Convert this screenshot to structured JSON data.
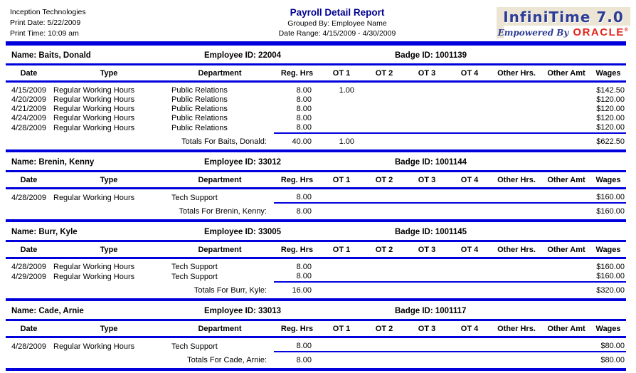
{
  "report": {
    "company": "Inception Technologies",
    "print_date": "Print Date: 5/22/2009",
    "print_time": "Print Time: 10:09 am",
    "title": "Payroll Detail Report",
    "grouped_by": "Grouped By:  Employee Name",
    "date_range": "Date Range:  4/15/2009 - 4/30/2009",
    "logo": {
      "brand": "InfiniTime 7.0",
      "tagline_prefix": "Empowered By",
      "tagline_brand": "ORACLE",
      "registered": "®",
      "brand_color": "#2e3d96",
      "oracle_color": "#e2231a",
      "background_color": "#ece5d3"
    }
  },
  "colors": {
    "rule_blue": "#0000dd",
    "title_navy": "#000090"
  },
  "columns": [
    "Date",
    "Type",
    "Department",
    "Reg. Hrs",
    "OT 1",
    "OT 2",
    "OT 3",
    "OT 4",
    "Other Hrs.",
    "Other Amt",
    "Wages"
  ],
  "employees": [
    {
      "name_label": "Name: Baits, Donald",
      "employee_id_label": "Employee ID: 22004",
      "badge_id_label": "Badge ID:  1001139",
      "rows": [
        {
          "date": "4/15/2009",
          "type": "Regular Working Hours",
          "department": "Public Relations",
          "reg_hrs": "8.00",
          "ot1": "1.00",
          "wages": "$142.50"
        },
        {
          "date": "4/20/2009",
          "type": "Regular Working Hours",
          "department": "Public Relations",
          "reg_hrs": "8.00",
          "wages": "$120.00"
        },
        {
          "date": "4/21/2009",
          "type": "Regular Working Hours",
          "department": "Public Relations",
          "reg_hrs": "8.00",
          "wages": "$120.00"
        },
        {
          "date": "4/24/2009",
          "type": "Regular Working Hours",
          "department": "Public Relations",
          "reg_hrs": "8.00",
          "wages": "$120.00"
        },
        {
          "date": "4/28/2009",
          "type": "Regular Working Hours",
          "department": "Public Relations",
          "reg_hrs": "8.00",
          "wages": "$120.00"
        }
      ],
      "totals": {
        "label": "Totals For Baits, Donald:",
        "reg_hrs": "40.00",
        "ot1": "1.00",
        "wages": "$622.50"
      }
    },
    {
      "name_label": "Name: Brenin, Kenny",
      "employee_id_label": "Employee ID: 33012",
      "badge_id_label": "Badge ID:  1001144",
      "rows": [
        {
          "date": "4/28/2009",
          "type": "Regular Working Hours",
          "department": "Tech Support",
          "reg_hrs": "8.00",
          "wages": "$160.00"
        }
      ],
      "totals": {
        "label": "Totals For Brenin, Kenny:",
        "reg_hrs": "8.00",
        "wages": "$160.00"
      }
    },
    {
      "name_label": "Name: Burr, Kyle",
      "employee_id_label": "Employee ID: 33005",
      "badge_id_label": "Badge ID:  1001145",
      "rows": [
        {
          "date": "4/28/2009",
          "type": "Regular Working Hours",
          "department": "Tech Support",
          "reg_hrs": "8.00",
          "wages": "$160.00"
        },
        {
          "date": "4/29/2009",
          "type": "Regular Working Hours",
          "department": "Tech Support",
          "reg_hrs": "8.00",
          "wages": "$160.00"
        }
      ],
      "totals": {
        "label": "Totals For Burr, Kyle:",
        "reg_hrs": "16.00",
        "wages": "$320.00"
      }
    },
    {
      "name_label": "Name: Cade, Arnie",
      "employee_id_label": "Employee ID: 33013",
      "badge_id_label": "Badge ID:  1001117",
      "rows": [
        {
          "date": "4/28/2009",
          "type": "Regular Working Hours",
          "department": "Tech Support",
          "reg_hrs": "8.00",
          "wages": "$80.00"
        }
      ],
      "totals": {
        "label": "Totals For Cade, Arnie:",
        "reg_hrs": "8.00",
        "wages": "$80.00"
      }
    }
  ]
}
